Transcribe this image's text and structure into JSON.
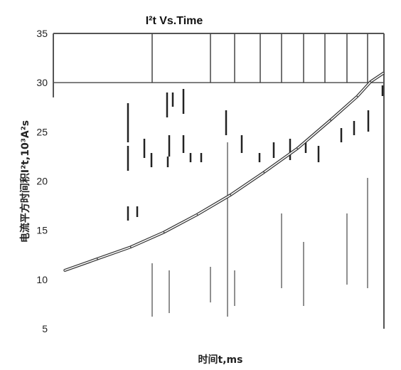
{
  "chart_data": {
    "type": "line",
    "title": "I²t  Vs.Time",
    "xlabel": "时间t,ms",
    "ylabel": "电流平方时间积I²t,10³A²s",
    "ylim": [
      5,
      35
    ],
    "yticks": [
      5,
      10,
      15,
      20,
      25,
      30,
      35
    ],
    "ytick_labels": [
      "5",
      "10",
      "15",
      "20",
      "25",
      "30",
      "35"
    ],
    "grid": true,
    "series": [
      {
        "values": [
          {
            "t": 0.0,
            "y": 10.9
          },
          {
            "t": 0.1,
            "y": 12.1
          },
          {
            "t": 0.2,
            "y": 13.3
          },
          {
            "t": 0.3,
            "y": 14.8
          },
          {
            "t": 0.4,
            "y": 16.6
          },
          {
            "t": 0.5,
            "y": 18.6
          },
          {
            "t": 0.6,
            "y": 20.9
          },
          {
            "t": 0.7,
            "y": 23.3
          },
          {
            "t": 0.8,
            "y": 26.2
          },
          {
            "t": 0.88,
            "y": 28.6
          },
          {
            "t": 0.92,
            "y": 30.1
          },
          {
            "t": 0.96,
            "y": 31.0
          }
        ]
      }
    ]
  }
}
